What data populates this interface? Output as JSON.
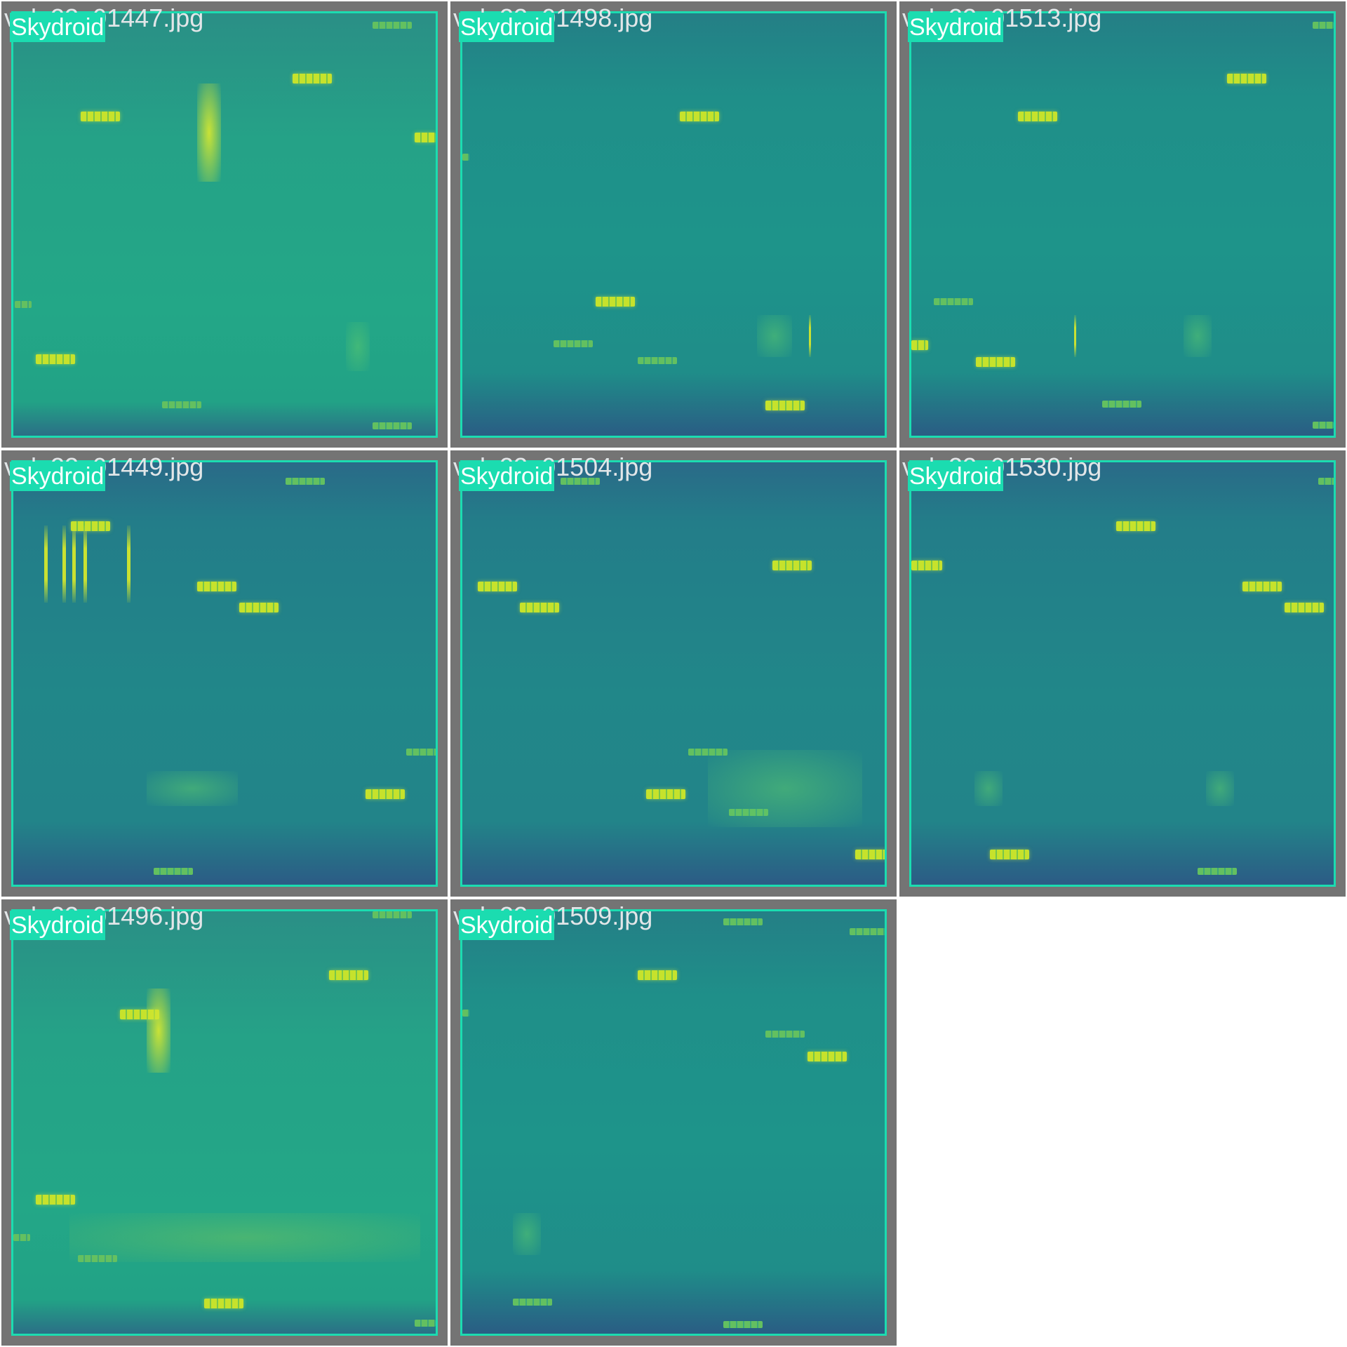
{
  "label_color": "#1bdcb0",
  "tiles": [
    {
      "filename": "val_23_01447.jpg",
      "class_label": "Skydroid"
    },
    {
      "filename": "val_23_01498.jpg",
      "class_label": "Skydroid"
    },
    {
      "filename": "val_23_01513.jpg",
      "class_label": "Skydroid"
    },
    {
      "filename": "val_23_01449.jpg",
      "class_label": "Skydroid"
    },
    {
      "filename": "val_23_01504.jpg",
      "class_label": "Skydroid"
    },
    {
      "filename": "val_23_01530.jpg",
      "class_label": "Skydroid"
    },
    {
      "filename": "val_23_01496.jpg",
      "class_label": "Skydroid"
    },
    {
      "filename": "val_23_01509.jpg",
      "class_label": "Skydroid"
    }
  ]
}
